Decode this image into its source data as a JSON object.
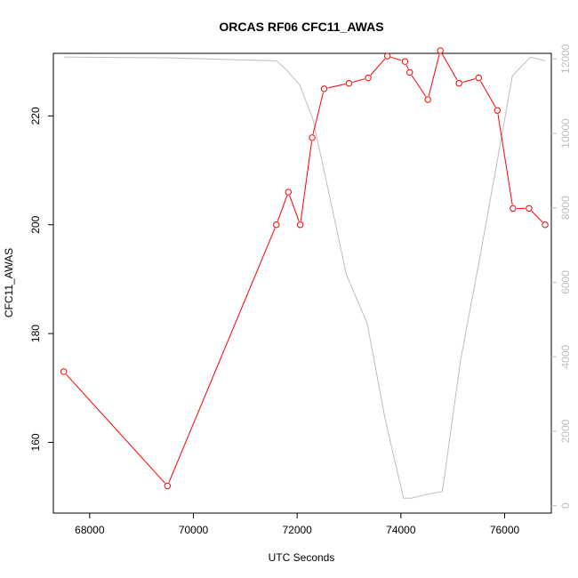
{
  "chart_data": {
    "type": "line",
    "title": "ORCAS RF06 CFC11_AWAS",
    "xlabel": "UTC Seconds",
    "ylabel": "CFC11_AWAS",
    "xlim": [
      67300,
      76900
    ],
    "ylim": [
      147,
      231.5
    ],
    "y2lim": [
      -200,
      12150
    ],
    "x_ticks": [
      68000,
      70000,
      72000,
      74000,
      76000
    ],
    "y_ticks": [
      160,
      180,
      200,
      220
    ],
    "y2_ticks": [
      0,
      2000,
      4000,
      6000,
      8000,
      10000,
      12000
    ],
    "grid": false,
    "series": [
      {
        "axis": "left",
        "color": "#ff0000",
        "style": "line-with-open-circles",
        "x": [
          67500,
          69500,
          71600,
          71830,
          72060,
          72290,
          72520,
          73000,
          73370,
          73740,
          74080,
          74170,
          74520,
          74760,
          75120,
          75500,
          75860,
          76160,
          76470,
          76780
        ],
        "y": [
          173,
          152,
          200,
          206,
          200,
          216,
          225,
          226,
          227,
          231,
          230,
          228,
          223,
          232,
          226,
          227,
          221,
          203,
          203,
          200
        ]
      },
      {
        "axis": "right",
        "color": "#bebebe",
        "style": "line",
        "x": [
          67500,
          69500,
          71600,
          71800,
          72050,
          72300,
          72550,
          72950,
          73350,
          73700,
          74050,
          74200,
          74500,
          74800,
          75150,
          75500,
          75850,
          76150,
          76500,
          76780
        ],
        "y": [
          12050,
          12030,
          11950,
          11700,
          11300,
          10400,
          8800,
          6200,
          4900,
          2300,
          200,
          200,
          300,
          380,
          3900,
          6500,
          9200,
          11550,
          12050,
          11950
        ]
      }
    ]
  }
}
